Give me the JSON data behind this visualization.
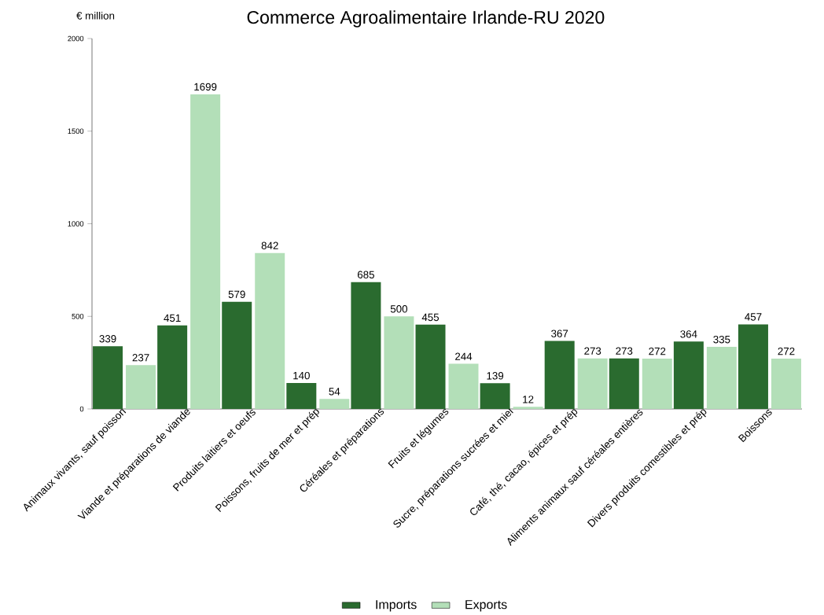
{
  "chart_data": {
    "type": "bar",
    "title": "Commerce Agroalimentaire Irlande-RU 2020",
    "ylabel": "€ million",
    "categories": [
      "Animaux vivants, sauf poisson",
      "Viande et préparations de viande",
      "Produits laitiers et oeufs",
      "Poissons, fruits de mer et prép",
      "Céréales et préparations",
      "Fruits et légumes",
      "Sucre, préparations sucrées et miel",
      "Café, thé, cacao, épices et prép",
      "Aliments animaux sauf céréales entières",
      "Divers produits comestibles et prép",
      "Boissons"
    ],
    "series": [
      {
        "name": "Imports",
        "color": "#2a6b2f",
        "values": [
          339,
          451,
          579,
          140,
          685,
          455,
          139,
          367,
          273,
          364,
          457
        ]
      },
      {
        "name": "Exports",
        "color": "#b3dfb8",
        "values": [
          237,
          1699,
          842,
          54,
          500,
          244,
          12,
          273,
          272,
          335,
          272
        ]
      }
    ],
    "ylim": [
      0,
      2000
    ],
    "yticks": [
      0,
      500,
      1000,
      1500,
      2000
    ],
    "grid": false,
    "legend": "bottom",
    "data_labels": true
  }
}
